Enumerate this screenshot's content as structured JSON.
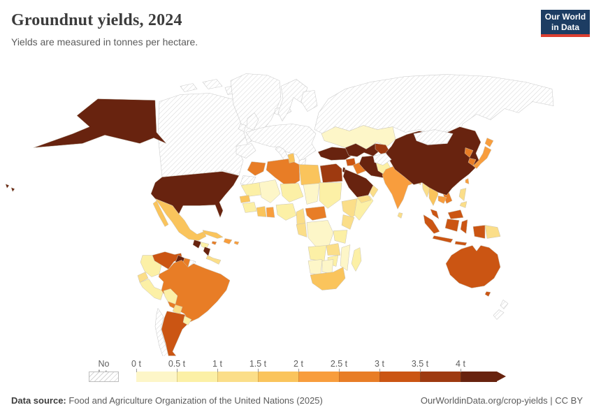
{
  "header": {
    "title": "Groundnut yields, 2024",
    "subtitle": "Yields are measured in tonnes per hectare.",
    "logo": {
      "line1": "Our World",
      "line2": "in Data",
      "bg_color": "#1d3d63",
      "accent_color": "#dc3f31"
    }
  },
  "legend": {
    "no_data_label": "No data",
    "tick_labels": [
      "0 t",
      "0.5 t",
      "1 t",
      "1.5 t",
      "2 t",
      "2.5 t",
      "3 t",
      "3.5 t",
      "4 t"
    ]
  },
  "footer": {
    "source_prefix": "Data source:",
    "source_text": " Food and Agriculture Organization of the United Nations (2025)",
    "credit": "OurWorldinData.org/crop-yields | CC BY"
  },
  "chart_data": {
    "type": "heatmap",
    "subtype": "choropleth-world-map",
    "title": "Groundnut yields, 2024",
    "unit": "tonnes per hectare",
    "legend_position": "bottom",
    "bins": [
      {
        "label": "0–0.5 t",
        "min": 0,
        "max": 0.5,
        "color": "#fdf6c8"
      },
      {
        "label": "0.5–1 t",
        "min": 0.5,
        "max": 1,
        "color": "#fcf0a6"
      },
      {
        "label": "1–1.5 t",
        "min": 1,
        "max": 1.5,
        "color": "#fbde89"
      },
      {
        "label": "1.5–2 t",
        "min": 1.5,
        "max": 2,
        "color": "#fac45c"
      },
      {
        "label": "2–2.5 t",
        "min": 2,
        "max": 2.5,
        "color": "#f89d3d"
      },
      {
        "label": "2.5–3 t",
        "min": 2.5,
        "max": 3,
        "color": "#e87d26"
      },
      {
        "label": "3–3.5 t",
        "min": 3,
        "max": 3.5,
        "color": "#cb5513"
      },
      {
        "label": "3.5–4 t",
        "min": 3.5,
        "max": 4,
        "color": "#9e3a10"
      },
      {
        "label": ">4 t",
        "min": 4,
        "max": null,
        "color": "#68230f"
      }
    ],
    "no_data_style": "white with gray diagonal hatching",
    "regions": {
      "canada": null,
      "greenland": null,
      "iceland": null,
      "united-kingdom": null,
      "ireland": null,
      "scandinavia": null,
      "finland": null,
      "europe-mainland": null,
      "iberia": null,
      "italy": null,
      "greece": null,
      "russia": null,
      "mongolia": null,
      "chile": null,
      "new-zealand": null,
      "afghanistan": null,
      "western-sahara": null,
      "french-guiana": null,
      "united-states": 8,
      "mexico": 3,
      "guatemala": 8,
      "honduras": 1,
      "nicaragua": 8,
      "costa-rica-panama": 2,
      "cuba": 3,
      "hispaniola": 4,
      "jamaica": 5,
      "puerto-rico": 4,
      "venezuela": 6,
      "guyana": 8,
      "suriname": 5,
      "colombia": 1,
      "ecuador": 2,
      "peru": 1,
      "brazil": 5,
      "bolivia": 1,
      "paraguay": 2,
      "argentina": 6,
      "uruguay": 1,
      "morocco": 5,
      "algeria": 5,
      "tunisia": 3,
      "libya": 3,
      "egypt": 7,
      "mauritania": 1,
      "mali": 0,
      "niger": 1,
      "chad": 0,
      "sudan": 1,
      "senegal": 3,
      "guinea": 1,
      "cote-divoire": 3,
      "ghana": 4,
      "nigeria": 1,
      "cameroon": 2,
      "central-african-republic": 5,
      "ethiopia": 2,
      "somalia": 1,
      "kenya": 2,
      "dr-congo": 0,
      "congo-gabon": 2,
      "tanzania": 1,
      "angola": 1,
      "zambia": 2,
      "mozambique": 0,
      "zimbabwe": 1,
      "namibia": 0,
      "botswana": 0,
      "south-africa": 3,
      "madagascar": 1,
      "turkey": 8,
      "syria": 6,
      "iraq": 5,
      "iran": 8,
      "saudi-arabia": 8,
      "yemen": 2,
      "oman": 2,
      "israel": 8,
      "kazakhstan": 0,
      "uzbekistan-turkmenistan": 8,
      "kyrgyzstan-tajikistan": 7,
      "pakistan": 1,
      "india": 4,
      "sri-lanka": 2,
      "bangladesh": 3,
      "myanmar": 2,
      "thailand": 3,
      "laos": 2,
      "vietnam": 5,
      "cambodia": 4,
      "philippines": 2,
      "china": 8,
      "north-korea": 5,
      "south-korea": 5,
      "japan": 4,
      "taiwan": 4,
      "malaysia": 6,
      "indonesia": 6,
      "papua-new-guinea": 2,
      "australia": 6
    }
  }
}
